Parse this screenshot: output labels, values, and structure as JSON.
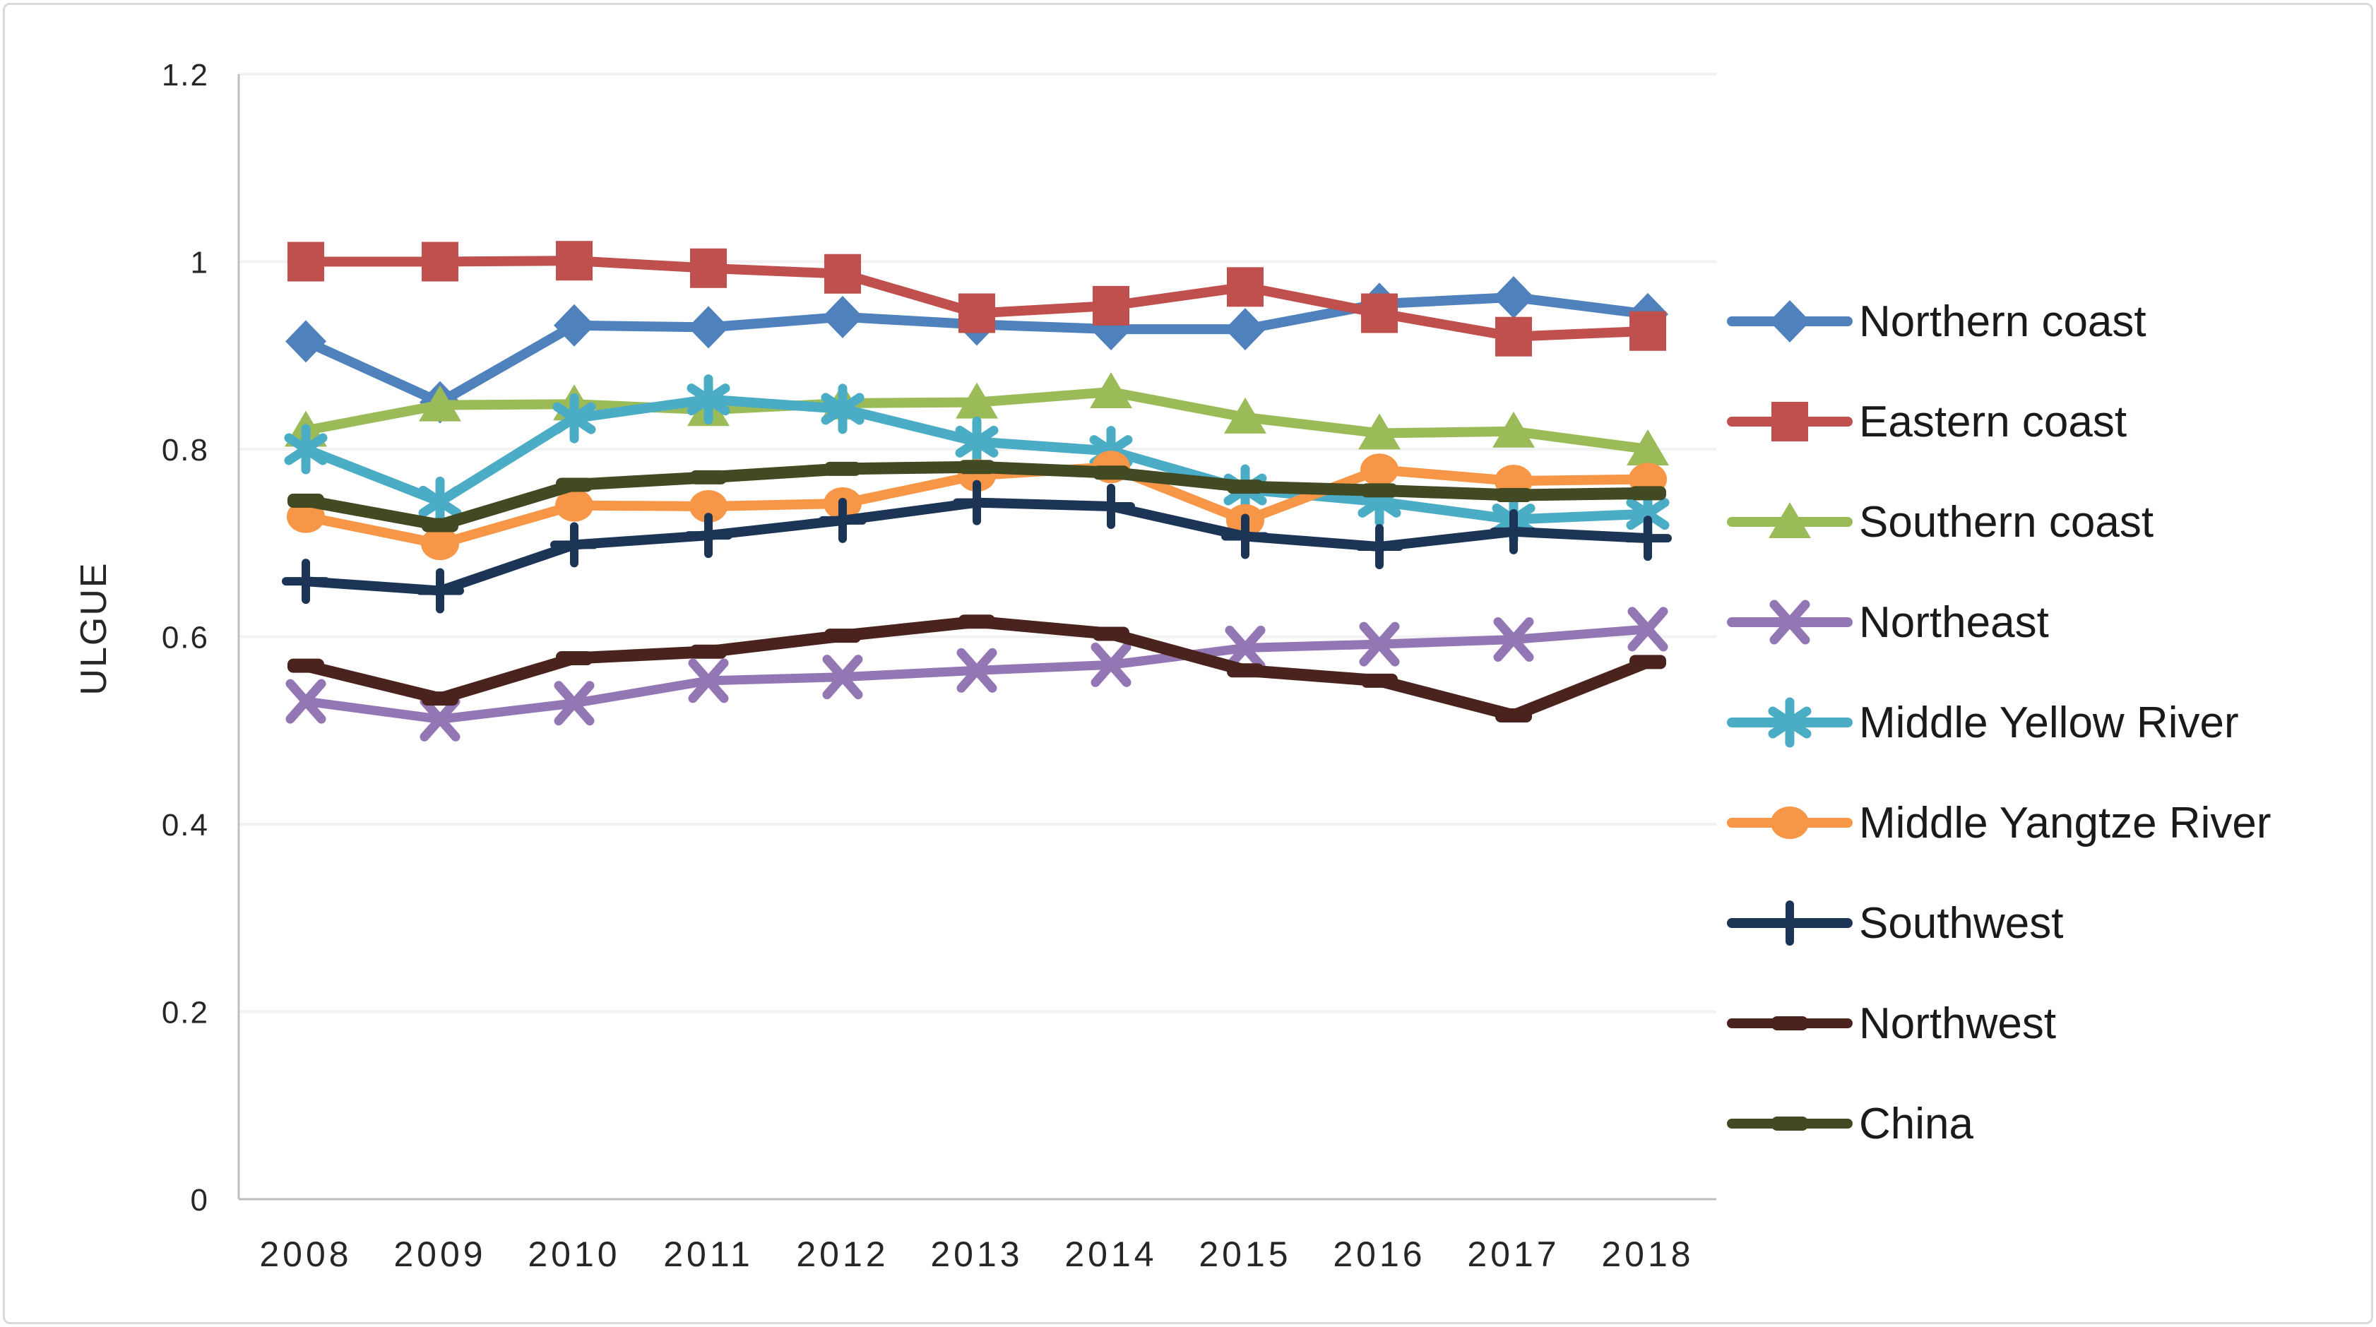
{
  "chart_data": {
    "type": "line",
    "title": "",
    "ylabel": "ULGUE",
    "xlabel": "",
    "categories": [
      "2008",
      "2009",
      "2010",
      "2011",
      "2012",
      "2013",
      "2014",
      "2015",
      "2016",
      "2017",
      "2018"
    ],
    "ylim": [
      0,
      1.2
    ],
    "y_tick_labels": [
      "1.2",
      "1",
      "0.8",
      "0.6",
      "0.4",
      "0.2",
      "0"
    ],
    "y_tick_values": [
      1.2,
      1.0,
      0.8,
      0.6,
      0.4,
      0.2,
      0
    ],
    "grid": "horizontal",
    "legend_position": "right",
    "colors": {
      "axis": "#bfbfbf",
      "gridline": "#f2f2f2",
      "tick_text": "#262626",
      "legend_text": "#1a1a1a",
      "background": "#ffffff",
      "border": "#d9d9d9"
    },
    "series": [
      {
        "name": "Northern coast",
        "color": "#4F81BD",
        "marker": "diamond",
        "line_width": 14,
        "values": [
          0.915,
          0.85,
          0.932,
          0.93,
          0.941,
          0.933,
          0.928,
          0.928,
          0.955,
          0.962,
          0.944
        ]
      },
      {
        "name": "Eastern coast",
        "color": "#C0504D",
        "marker": "square",
        "line_width": 14,
        "values": [
          1.0,
          1.0,
          1.001,
          0.993,
          0.987,
          0.945,
          0.953,
          0.973,
          0.945,
          0.92,
          0.926
        ]
      },
      {
        "name": "Southern coast",
        "color": "#9BBB59",
        "marker": "triangle",
        "line_width": 14,
        "values": [
          0.82,
          0.847,
          0.848,
          0.842,
          0.849,
          0.85,
          0.861,
          0.834,
          0.817,
          0.819,
          0.8
        ]
      },
      {
        "name": "Northeast",
        "color": "#9377B5",
        "marker": "x",
        "line_width": 13,
        "values": [
          0.531,
          0.512,
          0.529,
          0.553,
          0.557,
          0.564,
          0.57,
          0.588,
          0.592,
          0.597,
          0.608
        ]
      },
      {
        "name": "Middle Yellow River",
        "color": "#4BACC6",
        "marker": "asterisk",
        "line_width": 14,
        "values": [
          0.8,
          0.744,
          0.833,
          0.853,
          0.843,
          0.808,
          0.798,
          0.757,
          0.744,
          0.725,
          0.731
        ]
      },
      {
        "name": "Middle Yangtze River",
        "color": "#F79646",
        "marker": "circle",
        "line_width": 14,
        "values": [
          0.728,
          0.699,
          0.74,
          0.739,
          0.742,
          0.772,
          0.781,
          0.724,
          0.778,
          0.766,
          0.768
        ]
      },
      {
        "name": "Southwest",
        "color": "#1C3557",
        "marker": "plus",
        "line_width": 14,
        "values": [
          0.659,
          0.649,
          0.698,
          0.708,
          0.724,
          0.743,
          0.739,
          0.707,
          0.696,
          0.712,
          0.705
        ]
      },
      {
        "name": "Northwest",
        "color": "#4A231E",
        "marker": "dash",
        "line_width": 17,
        "values": [
          0.569,
          0.534,
          0.577,
          0.584,
          0.601,
          0.616,
          0.603,
          0.564,
          0.553,
          0.516,
          0.573
        ]
      },
      {
        "name": "China",
        "color": "#414A22",
        "marker": "dash",
        "line_width": 17,
        "values": [
          0.745,
          0.719,
          0.762,
          0.77,
          0.779,
          0.781,
          0.775,
          0.76,
          0.756,
          0.751,
          0.753
        ]
      }
    ]
  },
  "layout_note_values_visible_only": true
}
